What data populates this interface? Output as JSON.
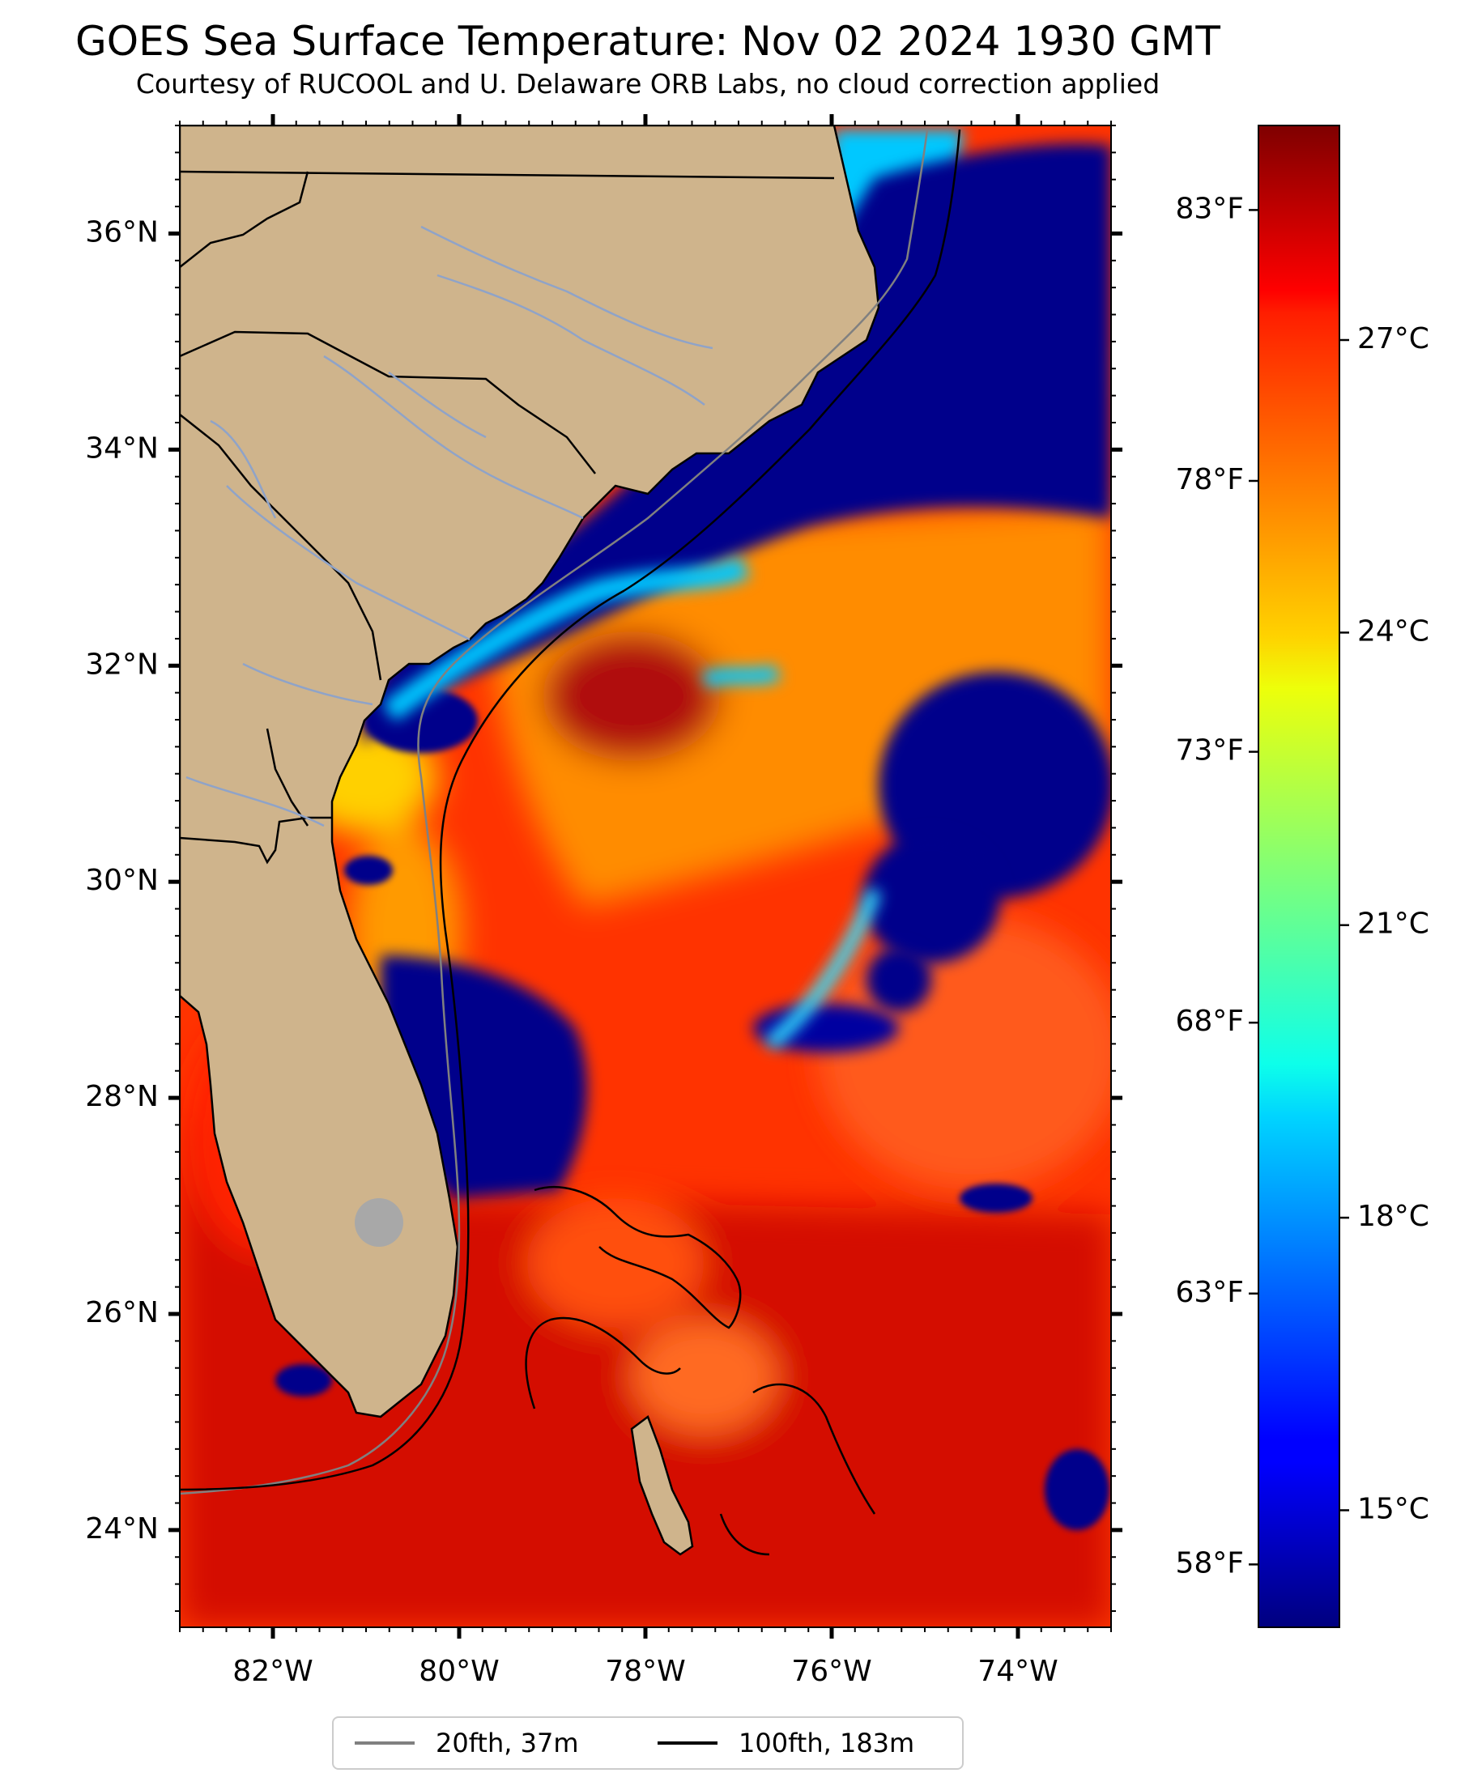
{
  "title": "GOES Sea Surface Temperature: Nov 02 2024 1930 GMT",
  "subtitle": "Courtesy of RUCOOL and U. Delaware ORB Labs, no cloud correction applied",
  "colors": {
    "land": "#cfb48c",
    "ocean_warm": "#ff3300",
    "ocean_hot": "#cc0a00",
    "ocean_orange": "#ff8c00",
    "cold_navy": "#00008b",
    "cyan": "#00c8ff",
    "isobath_20": "#808080",
    "isobath_100": "#000000",
    "border": "#000000",
    "river": "#8fa3c8",
    "lake": "#a8a8a8"
  },
  "map": {
    "lon_range": [
      -83,
      -73
    ],
    "lat_range": [
      23.1,
      37.0
    ],
    "lon_labels": [
      {
        "lon": -82,
        "label": "82°W"
      },
      {
        "lon": -80,
        "label": "80°W"
      },
      {
        "lon": -78,
        "label": "78°W"
      },
      {
        "lon": -76,
        "label": "76°W"
      },
      {
        "lon": -74,
        "label": "74°W"
      }
    ],
    "lat_labels": [
      {
        "lat": 36,
        "label": "36°N"
      },
      {
        "lat": 34,
        "label": "34°N"
      },
      {
        "lat": 32,
        "label": "32°N"
      },
      {
        "lat": 30,
        "label": "30°N"
      },
      {
        "lat": 28,
        "label": "28°N"
      },
      {
        "lat": 26,
        "label": "26°N"
      },
      {
        "lat": 24,
        "label": "24°N"
      }
    ]
  },
  "colorbar": {
    "colormap": "jet",
    "range_c": [
      13.8,
      29.2
    ],
    "celsius_ticks": [
      {
        "value": 15,
        "label": "15°C"
      },
      {
        "value": 18,
        "label": "18°C"
      },
      {
        "value": 21,
        "label": "21°C"
      },
      {
        "value": 24,
        "label": "24°C"
      },
      {
        "value": 27,
        "label": "27°C"
      }
    ],
    "fahrenheit_ticks": [
      {
        "value": 58,
        "label": "58°F"
      },
      {
        "value": 63,
        "label": "63°F"
      },
      {
        "value": 68,
        "label": "68°F"
      },
      {
        "value": 73,
        "label": "73°F"
      },
      {
        "value": 78,
        "label": "78°F"
      },
      {
        "value": 83,
        "label": "83°F"
      }
    ]
  },
  "legend": {
    "items": [
      {
        "label": "20fth, 37m",
        "color": "#808080"
      },
      {
        "label": "100fth, 183m",
        "color": "#000000"
      }
    ]
  }
}
